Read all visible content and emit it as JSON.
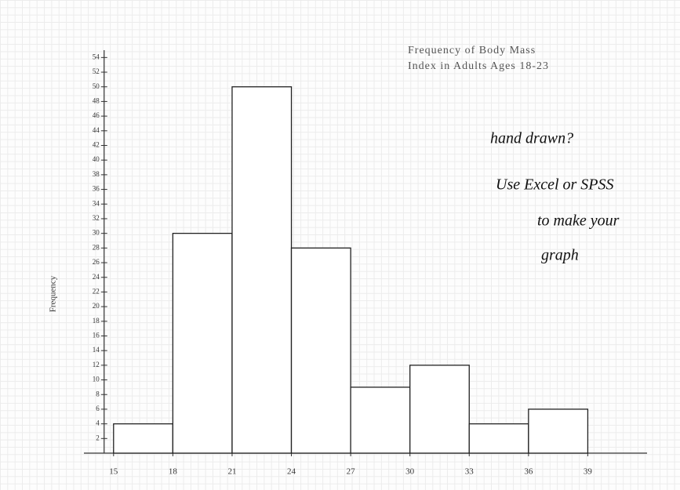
{
  "chart_data": {
    "type": "histogram",
    "title": [
      "Frequency of Body Mass",
      "Index in Adults Ages 18-23"
    ],
    "ylabel": "Frequency",
    "annotations": [
      "hand drawn?",
      "Use Excel or SPSS",
      "to make your",
      "graph"
    ],
    "bins": [
      15,
      18,
      21,
      24,
      27,
      30,
      33,
      36,
      39
    ],
    "values": [
      4,
      30,
      50,
      28,
      9,
      12,
      4,
      6
    ],
    "color": "#ffffff",
    "xlim": [
      13.5,
      42
    ],
    "ylim": [
      0,
      55
    ],
    "xticks": [
      15,
      18,
      21,
      24,
      27,
      30,
      33,
      36,
      39
    ],
    "yticks": [
      2,
      4,
      6,
      8,
      10,
      12,
      14,
      16,
      18,
      20,
      22,
      24,
      26,
      28,
      30,
      32,
      34,
      36,
      38,
      40,
      42,
      44,
      46,
      48,
      50,
      52,
      54
    ]
  }
}
